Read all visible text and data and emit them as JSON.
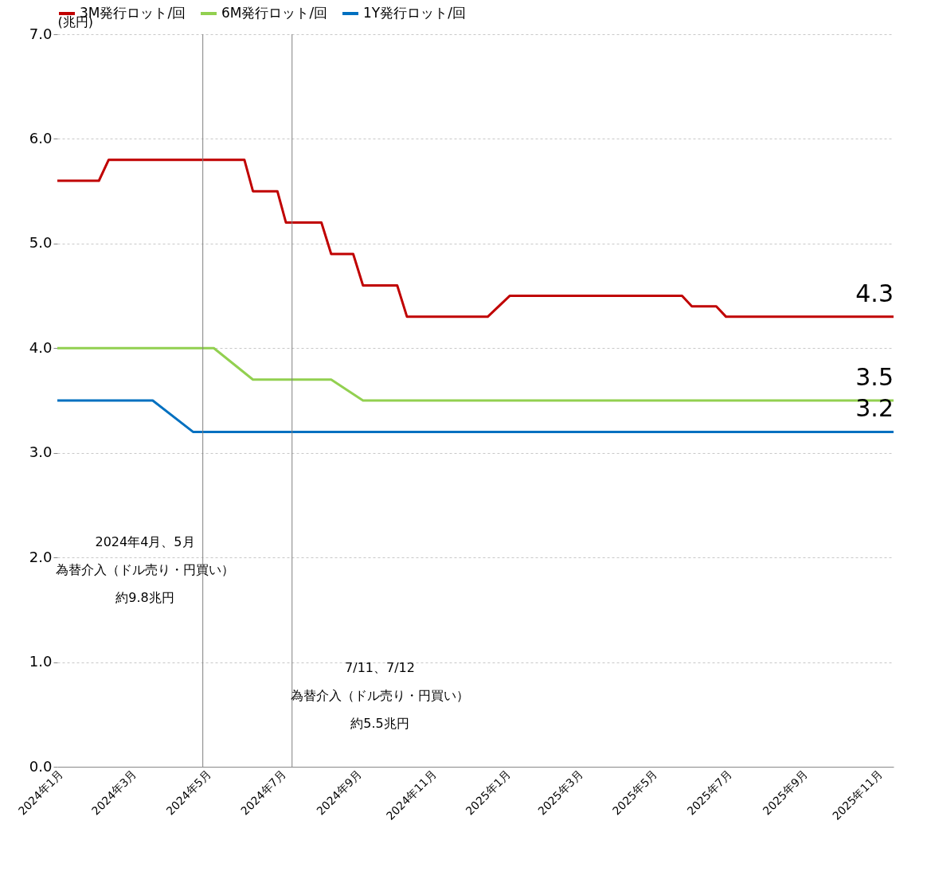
{
  "chart_data": {
    "type": "line",
    "ylabel": "(兆円)",
    "legend": "top",
    "grid": "y",
    "line_style": "solid",
    "marker": "none",
    "xlim": [
      "2024-01-01",
      "2025-11-15"
    ],
    "xticks": [
      {
        "value": "2024-01-01",
        "label": "2024年1月"
      },
      {
        "value": "2024-03-01",
        "label": "2024年3月"
      },
      {
        "value": "2024-05-01",
        "label": "2024年5月"
      },
      {
        "value": "2024-07-01",
        "label": "2024年7月"
      },
      {
        "value": "2024-09-01",
        "label": "2024年9月"
      },
      {
        "value": "2024-11-01",
        "label": "2024年11月"
      },
      {
        "value": "2025-01-01",
        "label": "2025年1月"
      },
      {
        "value": "2025-03-01",
        "label": "2025年3月"
      },
      {
        "value": "2025-05-01",
        "label": "2025年5月"
      },
      {
        "value": "2025-07-01",
        "label": "2025年7月"
      },
      {
        "value": "2025-09-01",
        "label": "2025年9月"
      },
      {
        "value": "2025-11-01",
        "label": "2025年11月"
      }
    ],
    "ylim": [
      0,
      7
    ],
    "yticks": [
      {
        "value": 0,
        "label": "0.0"
      },
      {
        "value": 1,
        "label": "1.0"
      },
      {
        "value": 2,
        "label": "2.0"
      },
      {
        "value": 3,
        "label": "3.0"
      },
      {
        "value": 4,
        "label": "4.0"
      },
      {
        "value": 5,
        "label": "5.0"
      },
      {
        "value": 6,
        "label": "6.0"
      },
      {
        "value": 7,
        "label": "7.0"
      }
    ],
    "series": [
      {
        "name": "3M発行ロット/回",
        "color": "#c00000",
        "x": [
          "2024-01-01",
          "2024-02-04",
          "2024-02-12",
          "2024-06-02",
          "2024-06-09",
          "2024-06-29",
          "2024-07-06",
          "2024-08-04",
          "2024-08-12",
          "2024-08-30",
          "2024-09-07",
          "2024-10-05",
          "2024-10-13",
          "2024-12-18",
          "2025-01-05",
          "2025-05-26",
          "2025-06-03",
          "2025-06-23",
          "2025-07-01",
          "2025-11-15"
        ],
        "values": [
          5.6,
          5.6,
          5.8,
          5.8,
          5.5,
          5.5,
          5.2,
          5.2,
          4.9,
          4.9,
          4.6,
          4.6,
          4.3,
          4.3,
          4.5,
          4.5,
          4.4,
          4.4,
          4.3,
          4.3
        ],
        "value_labels": [
          null,
          null,
          null,
          null,
          null,
          null,
          null,
          null,
          null,
          null,
          null,
          null,
          null,
          null,
          null,
          null,
          null,
          null,
          null,
          "4.3"
        ]
      },
      {
        "name": "6M発行ロット/回",
        "color": "#92d050",
        "x": [
          "2024-01-01",
          "2024-05-08",
          "2024-06-09",
          "2024-08-12",
          "2024-09-07",
          "2025-11-15"
        ],
        "values": [
          4.0,
          4.0,
          3.7,
          3.7,
          3.5,
          3.5
        ],
        "value_labels": [
          null,
          null,
          null,
          null,
          null,
          "3.5"
        ]
      },
      {
        "name": "1Y発行ロット/回",
        "color": "#0070c0",
        "x": [
          "2024-01-01",
          "2024-03-19",
          "2024-04-21",
          "2025-11-15"
        ],
        "values": [
          3.5,
          3.5,
          3.2,
          3.2
        ],
        "value_labels": [
          null,
          null,
          null,
          "3.2"
        ]
      }
    ],
    "ref_lines": [
      {
        "axis": "x",
        "value": "2024-04-29",
        "color": "#7f7f7f"
      },
      {
        "axis": "x",
        "value": "2024-07-11",
        "color": "#7f7f7f"
      }
    ],
    "annotations": [
      "2024年4月、5月",
      "為替介入（ドル売り・円買い）",
      "約9.8兆円",
      "7/11、7/12",
      "為替介入（ドル売り・円買い）",
      "約5.5兆円"
    ]
  }
}
